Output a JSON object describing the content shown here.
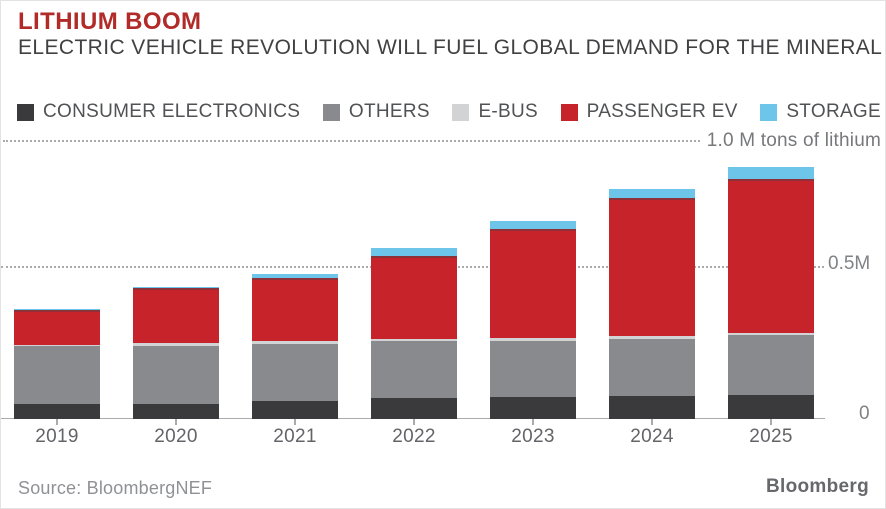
{
  "header": {
    "title": "LITHIUM BOOM",
    "subtitle": "ELECTRIC VEHICLE REVOLUTION WILL FUEL GLOBAL DEMAND FOR THE MINERAL",
    "title_color": "#b12b28"
  },
  "chart_data": {
    "type": "bar",
    "stacked": true,
    "title": "LITHIUM BOOM",
    "subtitle": "ELECTRIC VEHICLE REVOLUTION WILL FUEL GLOBAL DEMAND FOR THE MINERAL",
    "unit_label": "1.0 M tons of lithium",
    "categories": [
      "2019",
      "2020",
      "2021",
      "2022",
      "2023",
      "2024",
      "2025"
    ],
    "series": [
      {
        "name": "CONSUMER ELECTRONICS",
        "color": "#3a3a3c",
        "values": [
          0.049,
          0.049,
          0.059,
          0.07,
          0.072,
          0.076,
          0.079
        ]
      },
      {
        "name": "OTHERS",
        "color": "#898a8d",
        "values": [
          0.19,
          0.191,
          0.188,
          0.187,
          0.185,
          0.188,
          0.197
        ]
      },
      {
        "name": "E-BUS",
        "color": "#d1d3d4",
        "values": [
          0.005,
          0.01,
          0.01,
          0.008,
          0.011,
          0.01,
          0.008
        ]
      },
      {
        "name": "PASSENGER EV",
        "color": "#c7232b",
        "values": [
          0.116,
          0.18,
          0.207,
          0.272,
          0.356,
          0.454,
          0.505
        ]
      },
      {
        "name": "STORAGE",
        "color": "#6dc6ea",
        "values": [
          0.003,
          0.005,
          0.013,
          0.025,
          0.028,
          0.03,
          0.041
        ]
      }
    ],
    "ylim": [
      0,
      1.0
    ],
    "gridlines": [
      0.5,
      1.0
    ],
    "grid_style": "dotted",
    "axis_labels": {
      "mid": "0.5M",
      "zero": "0"
    },
    "legend_position": "top",
    "xlabel": "",
    "ylabel": "M tons of lithium"
  },
  "footer": {
    "source": "Source: BloombergNEF",
    "brand": "Bloomberg"
  }
}
